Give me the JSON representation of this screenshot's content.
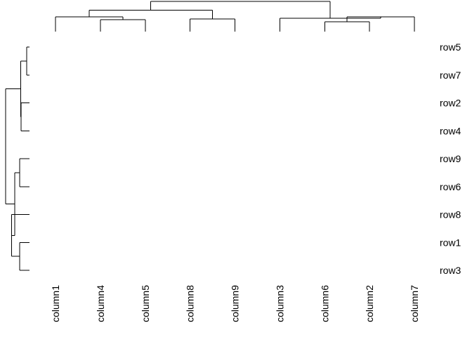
{
  "chart_data": {
    "type": "heatmap",
    "title": "",
    "xlabel": "",
    "ylabel": "",
    "column_order": [
      "column1",
      "column4",
      "column5",
      "column8",
      "column9",
      "column3",
      "column6",
      "column2",
      "column7"
    ],
    "row_order": [
      "row5",
      "row7",
      "row2",
      "row4",
      "row9",
      "row6",
      "row8",
      "row1",
      "row3"
    ],
    "column_dendrogram": {
      "heights": {
        "c45": 0.34,
        "c1_45": 0.42,
        "c89": 0.36,
        "c145_89": 0.62,
        "c62": 0.28,
        "c62_7": 0.42,
        "c3_627": 0.38,
        "root": 0.87
      }
    },
    "row_dendrogram": {
      "heights": {
        "r57": 0.06,
        "r24": 0.17,
        "r57_24": 0.18,
        "r96": 0.2,
        "r13": 0.2,
        "r8_13": 0.36,
        "r96_813": 0.3,
        "root": 0.48
      }
    },
    "cell_values": null,
    "legend": "none",
    "grid": false,
    "line_color": "#000000",
    "background": "#ffffff"
  }
}
